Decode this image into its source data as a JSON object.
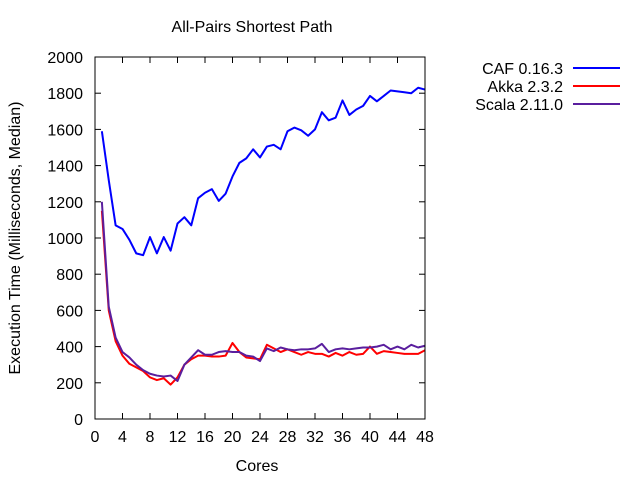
{
  "chart_data": {
    "type": "line",
    "title": "All-Pairs Shortest Path",
    "xlabel": "Cores",
    "ylabel": "Execution Time (Milliseconds, Median)",
    "xlim": [
      0,
      48
    ],
    "ylim": [
      0,
      2000
    ],
    "xticks": [
      0,
      4,
      8,
      12,
      16,
      20,
      24,
      28,
      32,
      36,
      40,
      44,
      48
    ],
    "yticks": [
      0,
      200,
      400,
      600,
      800,
      1000,
      1200,
      1400,
      1600,
      1800,
      2000
    ],
    "grid": false,
    "legend_position": "outside-top-right",
    "x": [
      1,
      2,
      3,
      4,
      5,
      6,
      7,
      8,
      9,
      10,
      11,
      12,
      13,
      14,
      15,
      16,
      17,
      18,
      19,
      20,
      21,
      22,
      23,
      24,
      25,
      26,
      27,
      28,
      29,
      30,
      31,
      32,
      33,
      34,
      35,
      36,
      37,
      38,
      39,
      40,
      41,
      42,
      43,
      44,
      45,
      46,
      47,
      48
    ],
    "series": [
      {
        "name": "CAF 0.16.3",
        "color": "#0000ff",
        "values": [
          1590,
          1320,
          1070,
          1050,
          990,
          915,
          905,
          1005,
          915,
          1005,
          930,
          1080,
          1115,
          1070,
          1220,
          1250,
          1270,
          1205,
          1245,
          1340,
          1415,
          1440,
          1490,
          1445,
          1505,
          1515,
          1490,
          1590,
          1610,
          1595,
          1565,
          1600,
          1695,
          1650,
          1665,
          1760,
          1680,
          1710,
          1730,
          1785,
          1755,
          1785,
          1815,
          1810,
          1805,
          1800,
          1830,
          1820
        ]
      },
      {
        "name": "Akka 2.3.2",
        "color": "#ff0000",
        "values": [
          1150,
          600,
          430,
          350,
          305,
          285,
          265,
          230,
          215,
          225,
          190,
          230,
          300,
          330,
          350,
          350,
          345,
          345,
          350,
          420,
          370,
          340,
          335,
          330,
          410,
          390,
          370,
          385,
          370,
          355,
          370,
          360,
          360,
          345,
          365,
          350,
          370,
          355,
          360,
          400,
          360,
          375,
          370,
          365,
          360,
          360,
          360,
          380
        ]
      },
      {
        "name": "Scala 2.11.0",
        "color": "#5a1e9e",
        "values": [
          1200,
          620,
          450,
          370,
          340,
          300,
          270,
          250,
          240,
          235,
          240,
          210,
          300,
          340,
          380,
          355,
          355,
          370,
          375,
          370,
          370,
          350,
          345,
          320,
          390,
          375,
          395,
          385,
          380,
          385,
          385,
          390,
          415,
          370,
          385,
          390,
          385,
          390,
          395,
          395,
          400,
          410,
          385,
          400,
          385,
          410,
          395,
          405
        ]
      }
    ]
  }
}
